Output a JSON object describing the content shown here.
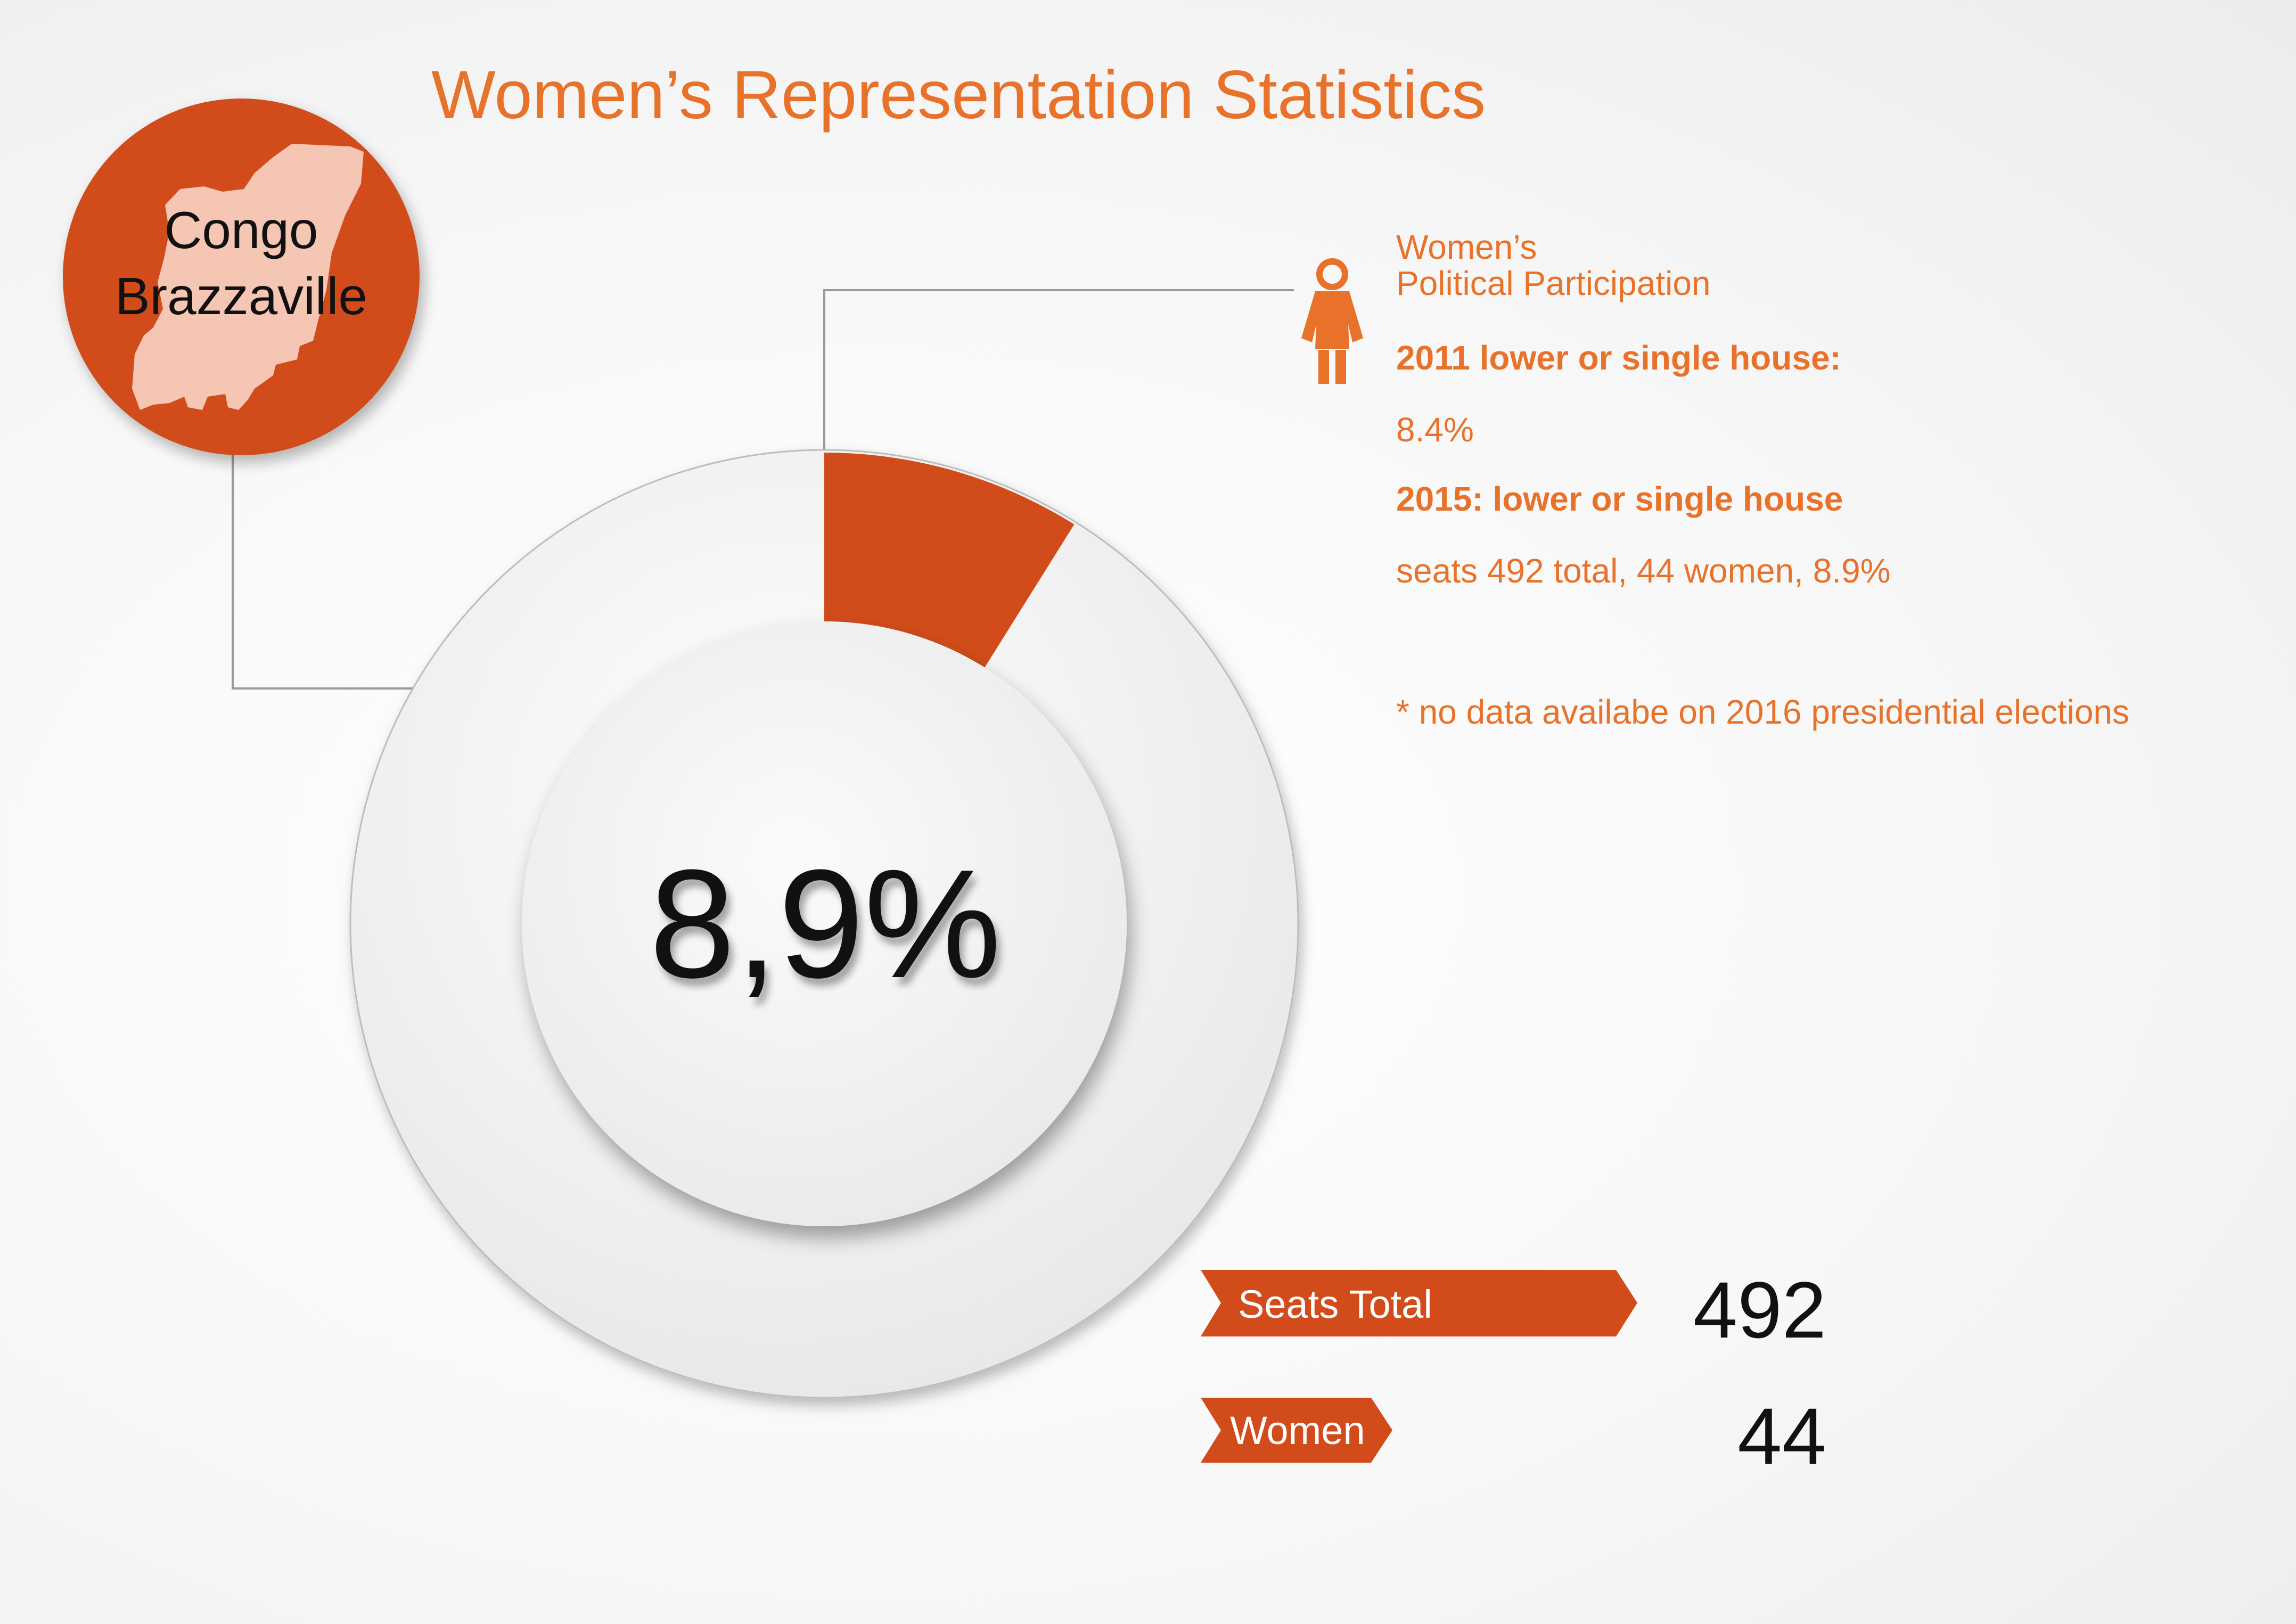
{
  "title": "Women’s Representation Statistics",
  "country": {
    "line1": "Congo",
    "line2": "Brazzaville",
    "map_icon": "congo-map-silhouette"
  },
  "chart_data": {
    "type": "pie",
    "variant": "donut",
    "slices": [
      {
        "label": "Women",
        "value": 8.9,
        "color": "#d14c1a"
      },
      {
        "label": "",
        "value": 91.1,
        "color": "#eeeeee"
      }
    ],
    "center_label": "8,9%"
  },
  "participation": {
    "heading_line1": "Women’s",
    "heading_line2": "Political Participation",
    "icon": "woman-icon",
    "year_2011_label": "2011 lower or single house:",
    "year_2011_value": "8.4%",
    "year_2015_label": "2015: lower or single house",
    "year_2015_value": "seats 492 total, 44 women, 8.9%",
    "note": "* no data availabe on 2016 presidential elections"
  },
  "stats": {
    "seats_total_label": "Seats Total",
    "seats_total_value": "492",
    "women_label": "Women",
    "women_value": "44"
  },
  "colors": {
    "accent": "#d14c1a",
    "text_accent": "#e8722a",
    "map_fill": "#f6c6b4"
  }
}
